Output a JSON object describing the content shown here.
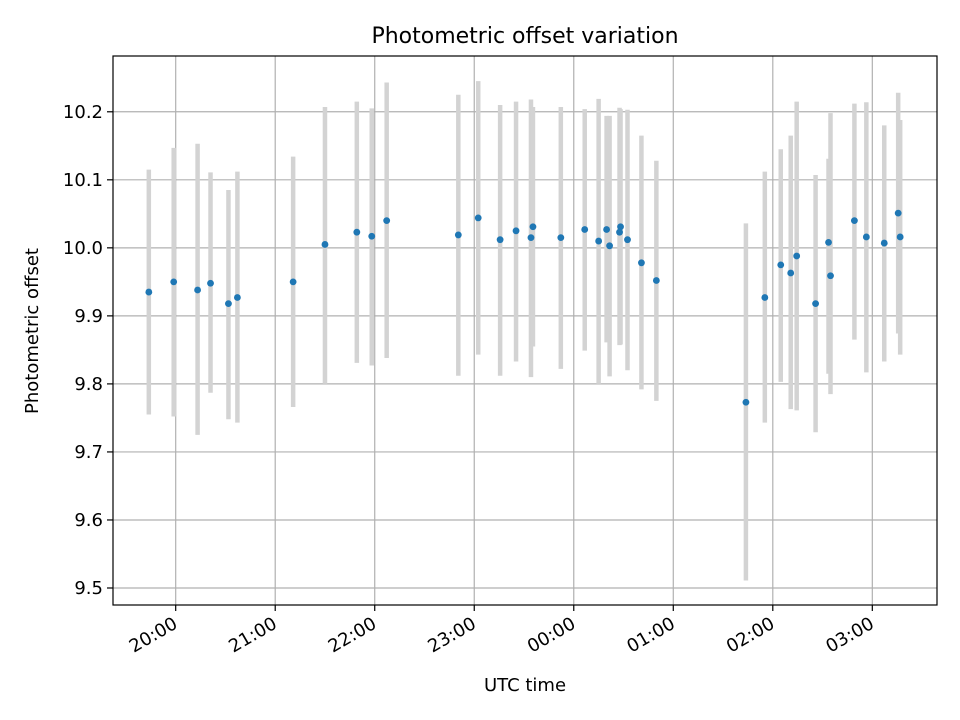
{
  "chart_data": {
    "type": "scatter",
    "title": "Photometric offset variation",
    "xlabel": "UTC time",
    "ylabel": "Photometric offset",
    "x_unit": "hours since 20:00 UTC on first night (values > 4 are after midnight)",
    "xlim": [
      -0.63,
      7.65
    ],
    "ylim": [
      9.475,
      10.282
    ],
    "grid": true,
    "x_ticks": [
      {
        "value": 0,
        "label": "20:00"
      },
      {
        "value": 1,
        "label": "21:00"
      },
      {
        "value": 2,
        "label": "22:00"
      },
      {
        "value": 3,
        "label": "23:00"
      },
      {
        "value": 4,
        "label": "00:00"
      },
      {
        "value": 5,
        "label": "01:00"
      },
      {
        "value": 6,
        "label": "02:00"
      },
      {
        "value": 7,
        "label": "03:00"
      }
    ],
    "y_ticks": [
      {
        "value": 9.5,
        "label": "9.5"
      },
      {
        "value": 9.6,
        "label": "9.6"
      },
      {
        "value": 9.7,
        "label": "9.7"
      },
      {
        "value": 9.8,
        "label": "9.8"
      },
      {
        "value": 9.9,
        "label": "9.9"
      },
      {
        "value": 10.0,
        "label": "10.0"
      },
      {
        "value": 10.1,
        "label": "10.1"
      },
      {
        "value": 10.2,
        "label": "10.2"
      }
    ],
    "colors": {
      "point": "#1f77b4",
      "errorbar": "#d3d3d3",
      "grid": "#b0b0b0",
      "axes": "#000000"
    },
    "series": [
      {
        "name": "offset",
        "points": [
          {
            "x": -0.27,
            "y": 9.935,
            "ylo": 9.755,
            "yhi": 10.115
          },
          {
            "x": -0.02,
            "y": 9.95,
            "ylo": 9.752,
            "yhi": 10.147
          },
          {
            "x": 0.22,
            "y": 9.938,
            "ylo": 9.725,
            "yhi": 10.153
          },
          {
            "x": 0.35,
            "y": 9.948,
            "ylo": 9.787,
            "yhi": 10.111
          },
          {
            "x": 0.53,
            "y": 9.918,
            "ylo": 9.748,
            "yhi": 10.085
          },
          {
            "x": 0.62,
            "y": 9.927,
            "ylo": 9.743,
            "yhi": 10.112
          },
          {
            "x": 1.18,
            "y": 9.95,
            "ylo": 9.766,
            "yhi": 10.134
          },
          {
            "x": 1.5,
            "y": 10.005,
            "ylo": 9.8,
            "yhi": 10.207
          },
          {
            "x": 1.82,
            "y": 10.023,
            "ylo": 9.831,
            "yhi": 10.215
          },
          {
            "x": 1.97,
            "y": 10.017,
            "ylo": 9.827,
            "yhi": 10.205
          },
          {
            "x": 2.12,
            "y": 10.04,
            "ylo": 9.838,
            "yhi": 10.243
          },
          {
            "x": 2.84,
            "y": 10.019,
            "ylo": 9.812,
            "yhi": 10.225
          },
          {
            "x": 3.04,
            "y": 10.044,
            "ylo": 9.843,
            "yhi": 10.245
          },
          {
            "x": 3.26,
            "y": 10.012,
            "ylo": 9.812,
            "yhi": 10.21
          },
          {
            "x": 3.42,
            "y": 10.025,
            "ylo": 9.833,
            "yhi": 10.215
          },
          {
            "x": 3.57,
            "y": 10.015,
            "ylo": 9.81,
            "yhi": 10.218
          },
          {
            "x": 3.59,
            "y": 10.031,
            "ylo": 9.855,
            "yhi": 10.207
          },
          {
            "x": 3.87,
            "y": 10.015,
            "ylo": 9.822,
            "yhi": 10.207
          },
          {
            "x": 4.11,
            "y": 10.027,
            "ylo": 9.849,
            "yhi": 10.204
          },
          {
            "x": 4.25,
            "y": 10.01,
            "ylo": 9.8,
            "yhi": 10.219
          },
          {
            "x": 4.33,
            "y": 10.027,
            "ylo": 9.861,
            "yhi": 10.194
          },
          {
            "x": 4.36,
            "y": 10.003,
            "ylo": 9.811,
            "yhi": 10.194
          },
          {
            "x": 4.46,
            "y": 10.023,
            "ylo": 9.857,
            "yhi": 10.206
          },
          {
            "x": 4.47,
            "y": 10.031,
            "ylo": 9.858,
            "yhi": 10.204
          },
          {
            "x": 4.54,
            "y": 10.012,
            "ylo": 9.82,
            "yhi": 10.203
          },
          {
            "x": 4.68,
            "y": 9.978,
            "ylo": 9.792,
            "yhi": 10.165
          },
          {
            "x": 4.83,
            "y": 9.952,
            "ylo": 9.775,
            "yhi": 10.128
          },
          {
            "x": 5.73,
            "y": 9.773,
            "ylo": 9.511,
            "yhi": 10.036
          },
          {
            "x": 5.92,
            "y": 9.927,
            "ylo": 9.743,
            "yhi": 10.112
          },
          {
            "x": 6.08,
            "y": 9.975,
            "ylo": 9.803,
            "yhi": 10.145
          },
          {
            "x": 6.18,
            "y": 9.963,
            "ylo": 9.763,
            "yhi": 10.165
          },
          {
            "x": 6.24,
            "y": 9.988,
            "ylo": 9.761,
            "yhi": 10.215
          },
          {
            "x": 6.43,
            "y": 9.918,
            "ylo": 9.729,
            "yhi": 10.107
          },
          {
            "x": 6.56,
            "y": 10.008,
            "ylo": 9.815,
            "yhi": 10.131
          },
          {
            "x": 6.58,
            "y": 9.959,
            "ylo": 9.785,
            "yhi": 10.198
          },
          {
            "x": 6.82,
            "y": 10.04,
            "ylo": 9.865,
            "yhi": 10.212
          },
          {
            "x": 6.94,
            "y": 10.016,
            "ylo": 9.817,
            "yhi": 10.214
          },
          {
            "x": 7.12,
            "y": 10.007,
            "ylo": 9.833,
            "yhi": 10.18
          },
          {
            "x": 7.26,
            "y": 10.051,
            "ylo": 9.874,
            "yhi": 10.228
          },
          {
            "x": 7.28,
            "y": 10.016,
            "ylo": 9.843,
            "yhi": 10.188
          }
        ]
      }
    ]
  }
}
